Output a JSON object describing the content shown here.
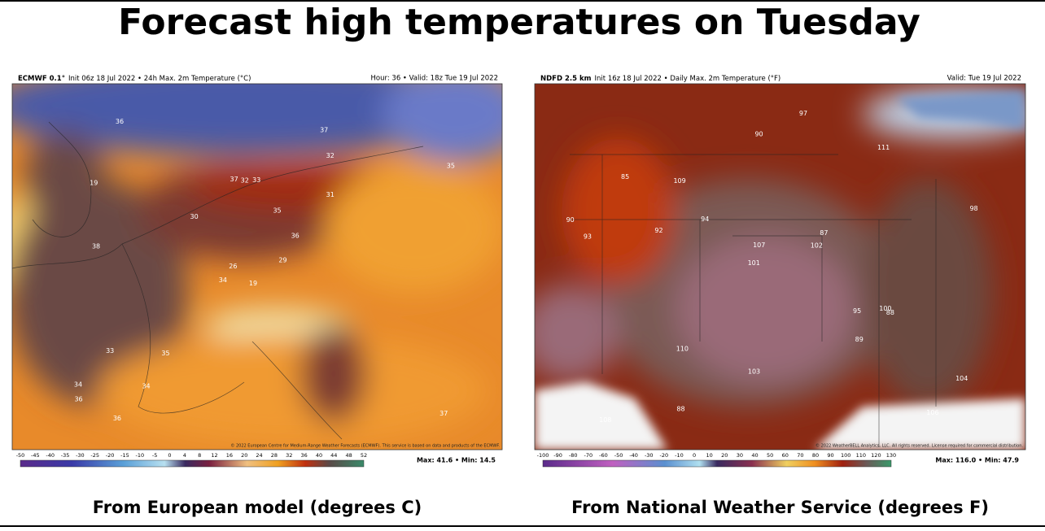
{
  "title": "Forecast high temperatures on Tuesday",
  "panels": [
    {
      "model": "ECMWF 0.1°",
      "description": "Init 06z 18 Jul 2022 • 24h Max. 2m Temperature (°C)",
      "valid": "Hour: 36 • Valid: 18z Tue 19 Jul 2022",
      "copyright": "© 2022 European Centre for Medium-Range Weather Forecasts (ECMWF). This service is based on data and products of the ECMWF.",
      "colorbar_ticks": [
        -50,
        -45,
        -40,
        -35,
        -30,
        -25,
        -20,
        -15,
        -10,
        -5,
        0,
        4,
        8,
        12,
        16,
        20,
        24,
        28,
        32,
        36,
        40,
        44,
        48,
        52
      ],
      "max_min": "Max: 41.6 • Min: 14.5",
      "map_labels": [
        "19",
        "19",
        "26",
        "34",
        "36",
        "35",
        "37",
        "33",
        "32",
        "29",
        "36",
        "37",
        "38",
        "35",
        "34",
        "31",
        "36",
        "37",
        "35",
        "33",
        "30",
        "36",
        "34",
        "32"
      ],
      "caption": "From European model (degrees C)"
    },
    {
      "model": "NDFD 2.5 km",
      "description": "Init 16z 18 Jul 2022 • Daily Max. 2m Temperature (°F)",
      "valid": "Valid: Tue 19 Jul 2022",
      "copyright": "© 2022 WeatherBELL Analytics, LLC. All rights reserved. License required for commercial distribution.",
      "colorbar_ticks": [
        -100,
        -90,
        -80,
        -70,
        -60,
        -50,
        -40,
        -30,
        -20,
        -10,
        0,
        10,
        20,
        30,
        40,
        50,
        60,
        70,
        80,
        90,
        100,
        110,
        120,
        130
      ],
      "max_min": "Max: 116.0 • Min: 47.9",
      "map_labels": [
        "87",
        "88",
        "85",
        "90",
        "93",
        "95",
        "98",
        "101",
        "103",
        "107",
        "109",
        "111",
        "110",
        "106",
        "104",
        "100",
        "97",
        "94",
        "92",
        "89",
        "88",
        "90",
        "102",
        "108"
      ],
      "caption": "From National Weather Service (degrees F)"
    }
  ]
}
